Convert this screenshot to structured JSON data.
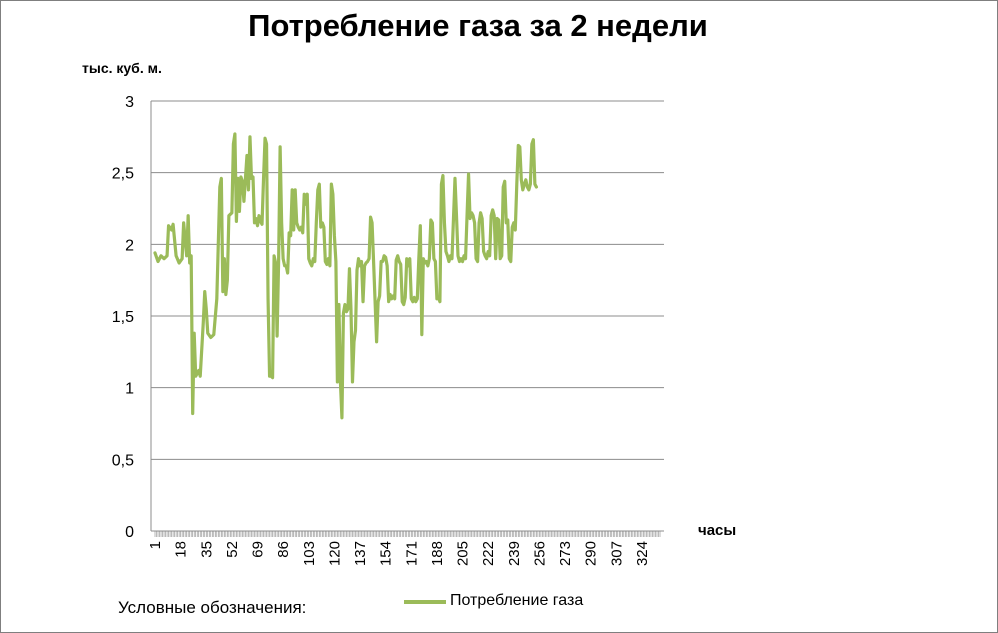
{
  "chart_data": {
    "type": "line",
    "title": "Потребление газа за 2 недели",
    "ylabel": "тыс. куб. м.",
    "xlabel": "часы",
    "ylim": [
      0,
      3
    ],
    "yticks": [
      0,
      0.5,
      1,
      1.5,
      2,
      2.5,
      3
    ],
    "ytick_labels": [
      "0",
      "0,5",
      "1",
      "1,5",
      "2",
      "2,5",
      "3"
    ],
    "xticks": [
      1,
      18,
      35,
      52,
      69,
      86,
      103,
      120,
      137,
      154,
      171,
      188,
      205,
      222,
      239,
      256,
      273,
      290,
      307,
      324
    ],
    "xtick_labels": [
      "1",
      "18",
      "35",
      "52",
      "69",
      "86",
      "103",
      "120",
      "137",
      "154",
      "171",
      "188",
      "205",
      "222",
      "239",
      "256",
      "273",
      "290",
      "307",
      "324"
    ],
    "x_count": 336,
    "grid": true,
    "legend_caption": "Условные обозначения:",
    "legend_position": "bottom",
    "series": [
      {
        "name": "Потребление газа",
        "color": "#9bbb59",
        "points": [
          [
            1,
            1.94
          ],
          [
            3,
            1.88
          ],
          [
            5,
            1.92
          ],
          [
            7,
            1.9
          ],
          [
            9,
            1.92
          ],
          [
            10,
            2.13
          ],
          [
            12,
            2.1
          ],
          [
            13,
            2.14
          ],
          [
            15,
            1.92
          ],
          [
            17,
            1.87
          ],
          [
            19,
            1.9
          ],
          [
            20,
            2.15
          ],
          [
            22,
            1.92
          ],
          [
            23,
            2.2
          ],
          [
            24,
            1.87
          ],
          [
            25,
            1.92
          ],
          [
            26,
            0.82
          ],
          [
            27,
            1.38
          ],
          [
            28,
            1.08
          ],
          [
            30,
            1.12
          ],
          [
            31,
            1.08
          ],
          [
            33,
            1.45
          ],
          [
            34,
            1.67
          ],
          [
            35,
            1.55
          ],
          [
            36,
            1.38
          ],
          [
            38,
            1.35
          ],
          [
            40,
            1.37
          ],
          [
            42,
            1.62
          ],
          [
            44,
            2.4
          ],
          [
            45,
            2.46
          ],
          [
            46,
            1.67
          ],
          [
            47,
            1.9
          ],
          [
            48,
            1.65
          ],
          [
            49,
            1.75
          ],
          [
            50,
            2.2
          ],
          [
            52,
            2.22
          ],
          [
            53,
            2.7
          ],
          [
            54,
            2.77
          ],
          [
            55,
            2.16
          ],
          [
            56,
            2.46
          ],
          [
            57,
            2.23
          ],
          [
            58,
            2.47
          ],
          [
            59,
            2.44
          ],
          [
            60,
            2.3
          ],
          [
            61,
            2.46
          ],
          [
            62,
            2.62
          ],
          [
            63,
            2.38
          ],
          [
            64,
            2.75
          ],
          [
            65,
            2.46
          ],
          [
            66,
            2.47
          ],
          [
            67,
            2.15
          ],
          [
            68,
            2.18
          ],
          [
            69,
            2.13
          ],
          [
            70,
            2.2
          ],
          [
            71,
            2.16
          ],
          [
            72,
            2.14
          ],
          [
            73,
            2.46
          ],
          [
            74,
            2.74
          ],
          [
            75,
            2.7
          ],
          [
            76,
            1.62
          ],
          [
            77,
            1.08
          ],
          [
            78,
            1.08
          ],
          [
            79,
            1.07
          ],
          [
            80,
            1.92
          ],
          [
            81,
            1.87
          ],
          [
            82,
            1.36
          ],
          [
            83,
            1.88
          ],
          [
            84,
            2.68
          ],
          [
            85,
            2.15
          ],
          [
            86,
            1.9
          ],
          [
            87,
            1.85
          ],
          [
            88,
            1.85
          ],
          [
            89,
            1.8
          ],
          [
            90,
            2.08
          ],
          [
            91,
            2.06
          ],
          [
            92,
            2.38
          ],
          [
            93,
            2.1
          ],
          [
            94,
            2.38
          ],
          [
            95,
            2.15
          ],
          [
            96,
            2.12
          ],
          [
            97,
            2.1
          ],
          [
            98,
            2.12
          ],
          [
            99,
            2.08
          ],
          [
            100,
            2.35
          ],
          [
            101,
            2.28
          ],
          [
            102,
            2.35
          ],
          [
            103,
            1.9
          ],
          [
            104,
            1.87
          ],
          [
            105,
            1.85
          ],
          [
            106,
            1.9
          ],
          [
            107,
            1.88
          ],
          [
            108,
            2.15
          ],
          [
            109,
            2.38
          ],
          [
            110,
            2.42
          ],
          [
            111,
            2.12
          ],
          [
            112,
            2.15
          ],
          [
            113,
            2.12
          ],
          [
            114,
            1.88
          ],
          [
            115,
            1.86
          ],
          [
            116,
            1.9
          ],
          [
            117,
            1.85
          ],
          [
            118,
            2.42
          ],
          [
            119,
            2.35
          ],
          [
            120,
            2.06
          ],
          [
            121,
            1.88
          ],
          [
            122,
            1.04
          ],
          [
            123,
            1.58
          ],
          [
            124,
            1.04
          ],
          [
            125,
            0.79
          ],
          [
            126,
            1.52
          ],
          [
            127,
            1.58
          ],
          [
            128,
            1.53
          ],
          [
            129,
            1.55
          ],
          [
            130,
            1.83
          ],
          [
            131,
            1.55
          ],
          [
            132,
            1.04
          ],
          [
            133,
            1.32
          ],
          [
            134,
            1.4
          ],
          [
            135,
            1.82
          ],
          [
            136,
            1.9
          ],
          [
            137,
            1.85
          ],
          [
            138,
            1.88
          ],
          [
            139,
            1.6
          ],
          [
            140,
            1.85
          ],
          [
            141,
            1.87
          ],
          [
            142,
            1.88
          ],
          [
            143,
            1.9
          ],
          [
            144,
            2.19
          ],
          [
            145,
            2.15
          ],
          [
            146,
            1.88
          ],
          [
            147,
            1.6
          ],
          [
            148,
            1.32
          ],
          [
            149,
            1.6
          ],
          [
            150,
            1.64
          ],
          [
            151,
            1.88
          ],
          [
            152,
            1.88
          ],
          [
            153,
            1.92
          ],
          [
            154,
            1.91
          ],
          [
            155,
            1.85
          ],
          [
            156,
            1.6
          ],
          [
            157,
            1.65
          ],
          [
            158,
            1.62
          ],
          [
            159,
            1.64
          ],
          [
            160,
            1.62
          ],
          [
            161,
            1.89
          ],
          [
            162,
            1.92
          ],
          [
            163,
            1.88
          ],
          [
            164,
            1.86
          ],
          [
            165,
            1.6
          ],
          [
            166,
            1.58
          ],
          [
            167,
            1.63
          ],
          [
            168,
            1.9
          ],
          [
            169,
            1.85
          ],
          [
            170,
            1.9
          ],
          [
            171,
            1.62
          ],
          [
            172,
            1.6
          ],
          [
            173,
            1.63
          ],
          [
            174,
            1.6
          ],
          [
            175,
            1.62
          ],
          [
            176,
            1.9
          ],
          [
            177,
            2.13
          ],
          [
            178,
            1.37
          ],
          [
            179,
            1.9
          ],
          [
            180,
            1.87
          ],
          [
            181,
            1.88
          ],
          [
            182,
            1.85
          ],
          [
            183,
            1.9
          ],
          [
            184,
            2.17
          ],
          [
            185,
            2.15
          ],
          [
            186,
            1.9
          ],
          [
            187,
            1.88
          ],
          [
            188,
            1.62
          ],
          [
            189,
            1.63
          ],
          [
            190,
            1.6
          ],
          [
            191,
            2.42
          ],
          [
            192,
            2.48
          ],
          [
            193,
            2.15
          ],
          [
            194,
            1.95
          ],
          [
            195,
            1.92
          ],
          [
            196,
            1.88
          ],
          [
            197,
            1.92
          ],
          [
            198,
            1.9
          ],
          [
            199,
            2.18
          ],
          [
            200,
            2.46
          ],
          [
            201,
            2.2
          ],
          [
            202,
            1.92
          ],
          [
            203,
            1.88
          ],
          [
            204,
            1.9
          ],
          [
            205,
            1.88
          ],
          [
            206,
            1.92
          ],
          [
            207,
            1.9
          ],
          [
            208,
            2.2
          ],
          [
            209,
            2.49
          ],
          [
            210,
            2.18
          ],
          [
            211,
            2.22
          ],
          [
            212,
            2.2
          ],
          [
            213,
            2.15
          ],
          [
            214,
            1.9
          ],
          [
            215,
            1.88
          ],
          [
            216,
            2.15
          ],
          [
            217,
            2.22
          ],
          [
            218,
            2.18
          ],
          [
            219,
            1.95
          ],
          [
            220,
            1.92
          ],
          [
            221,
            1.9
          ],
          [
            222,
            1.95
          ],
          [
            223,
            1.92
          ],
          [
            224,
            2.2
          ],
          [
            225,
            2.24
          ],
          [
            226,
            2.2
          ],
          [
            227,
            1.9
          ],
          [
            228,
            2.18
          ],
          [
            229,
            2.17
          ],
          [
            230,
            1.9
          ],
          [
            231,
            1.92
          ],
          [
            232,
            2.4
          ],
          [
            233,
            2.44
          ],
          [
            234,
            2.15
          ],
          [
            235,
            2.17
          ],
          [
            236,
            1.9
          ],
          [
            237,
            1.88
          ],
          [
            238,
            2.12
          ],
          [
            239,
            2.15
          ],
          [
            240,
            2.1
          ],
          [
            241,
            2.42
          ],
          [
            242,
            2.69
          ],
          [
            243,
            2.68
          ],
          [
            244,
            2.45
          ],
          [
            245,
            2.38
          ],
          [
            246,
            2.42
          ],
          [
            247,
            2.45
          ],
          [
            248,
            2.4
          ],
          [
            249,
            2.38
          ],
          [
            250,
            2.42
          ],
          [
            251,
            2.7
          ],
          [
            252,
            2.73
          ],
          [
            253,
            2.42
          ],
          [
            254,
            2.4
          ]
        ]
      }
    ]
  }
}
